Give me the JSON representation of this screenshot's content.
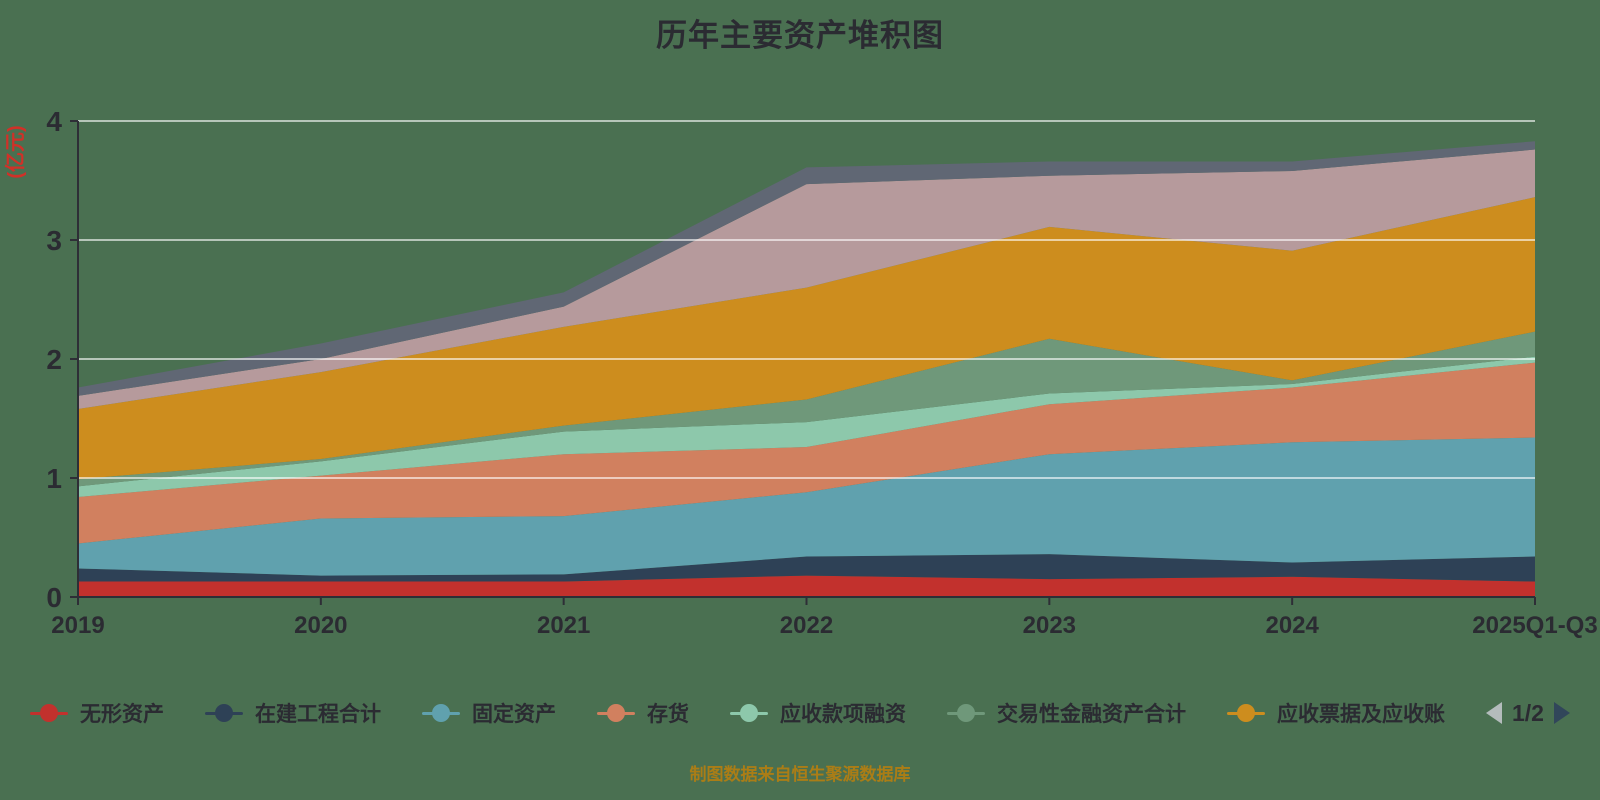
{
  "title": "历年主要资产堆积图",
  "footer": "制图数据来自恒生聚源数据库",
  "y_axis": {
    "name": "(亿元)",
    "ticks": [
      "0",
      "1",
      "2",
      "3",
      "4"
    ],
    "max": 4
  },
  "x_axis": {
    "categories": [
      "2019",
      "2020",
      "2021",
      "2022",
      "2023",
      "2024",
      "2025Q1-Q3"
    ]
  },
  "legend": {
    "items": [
      {
        "label": "无形资产",
        "color": "#c2312d"
      },
      {
        "label": "在建工程合计",
        "color": "#2e4156"
      },
      {
        "label": "固定资产",
        "color": "#60a1ae"
      },
      {
        "label": "存货",
        "color": "#d1805f"
      },
      {
        "label": "应收款项融资",
        "color": "#8dc8ab"
      },
      {
        "label": "交易性金融资产合计",
        "color": "#6f987a"
      },
      {
        "label": "应收票据及应收账",
        "color": "#cd8d1e"
      }
    ],
    "pager": {
      "text": "1/2",
      "prev_enabled": false,
      "next_enabled": true
    }
  },
  "colors": {
    "background": "#4a7051",
    "text": "#2b2b32",
    "axis": "#2e2e36",
    "gridline": "rgba(255,255,255,0.6)",
    "y_axis_name": "#d03128",
    "footer": "#ab7d16",
    "pager_prev": "#b4bcbc",
    "pager_next": "#31465a"
  },
  "chart_data": {
    "type": "area",
    "stacked": true,
    "title": "历年主要资产堆积图",
    "xlabel": "",
    "ylabel": "(亿元)",
    "ylim": [
      0,
      4
    ],
    "grid": true,
    "legend_position": "bottom",
    "legend_pages": "1/2",
    "categories": [
      "2019",
      "2020",
      "2021",
      "2022",
      "2023",
      "2024",
      "2025Q1-Q3"
    ],
    "series": [
      {
        "name": "无形资产",
        "color": "#c2312d",
        "values": [
          0.13,
          0.13,
          0.13,
          0.18,
          0.15,
          0.17,
          0.13
        ]
      },
      {
        "name": "在建工程合计",
        "color": "#2e4156",
        "values": [
          0.11,
          0.05,
          0.06,
          0.16,
          0.21,
          0.12,
          0.21
        ]
      },
      {
        "name": "固定资产",
        "color": "#60a1ae",
        "values": [
          0.21,
          0.48,
          0.49,
          0.54,
          0.84,
          1.01,
          1.0
        ]
      },
      {
        "name": "存货",
        "color": "#d1805f",
        "values": [
          0.39,
          0.36,
          0.52,
          0.38,
          0.42,
          0.46,
          0.63
        ]
      },
      {
        "name": "应收款项融资",
        "color": "#8dc8ab",
        "values": [
          0.09,
          0.12,
          0.19,
          0.21,
          0.09,
          0.03,
          0.05
        ]
      },
      {
        "name": "交易性金融资产合计",
        "color": "#6f987a",
        "values": [
          0.06,
          0.02,
          0.05,
          0.19,
          0.46,
          0.03,
          0.21
        ]
      },
      {
        "name": "应收票据及应收账",
        "color": "#cd8d1e",
        "values": [
          0.59,
          0.73,
          0.83,
          0.94,
          0.94,
          1.09,
          1.13
        ]
      },
      {
        "name": "unlabeled-series-mauve",
        "color": "#b69a9c",
        "legend_visible": false,
        "values": [
          0.11,
          0.11,
          0.17,
          0.87,
          0.43,
          0.67,
          0.4
        ]
      },
      {
        "name": "unlabeled-series-gray",
        "color": "#606774",
        "legend_visible": false,
        "values": [
          0.07,
          0.13,
          0.12,
          0.14,
          0.12,
          0.08,
          0.07
        ]
      }
    ],
    "cumulative_totals": [
      1.76,
      2.13,
      2.56,
      3.61,
      3.66,
      3.66,
      3.83
    ]
  }
}
